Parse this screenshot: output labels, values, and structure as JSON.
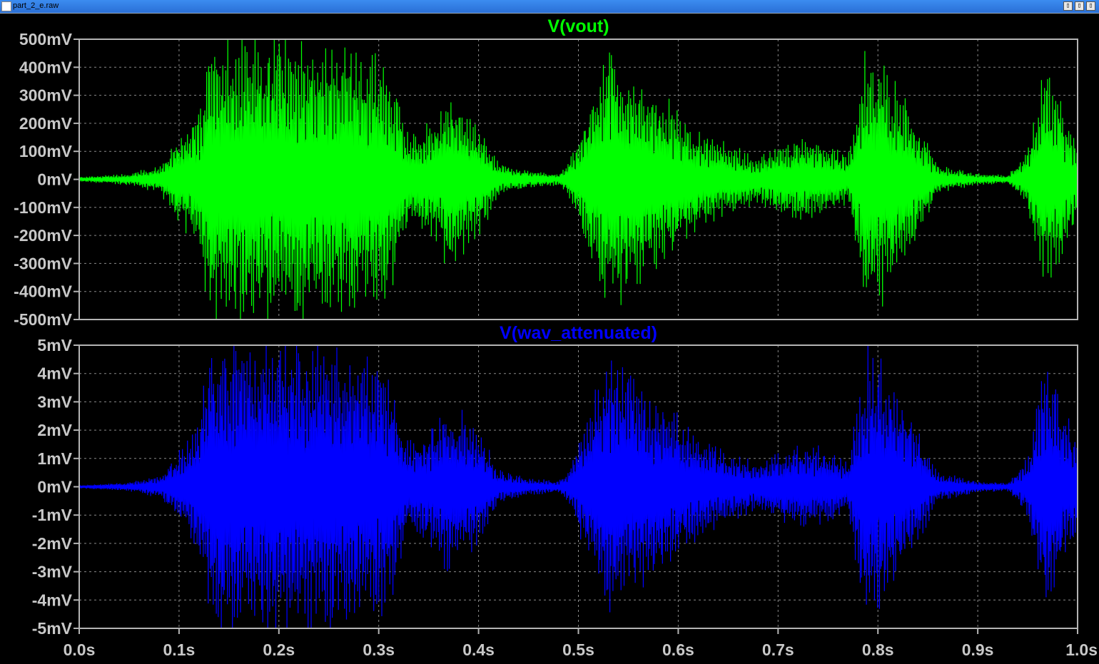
{
  "window": {
    "title": "part_2_e.raw",
    "controls": [
      "▯",
      "▯",
      "▯"
    ]
  },
  "chart_data": [
    {
      "type": "line",
      "title": "V(vout)",
      "color": "#00ff00",
      "ylim": [
        -500,
        500
      ],
      "yunit": "mV",
      "yticks": [
        500,
        400,
        300,
        200,
        100,
        0,
        -100,
        -200,
        -300,
        -400,
        -500
      ],
      "ytick_labels": [
        "500mV",
        "400mV",
        "300mV",
        "200mV",
        "100mV",
        "0mV",
        "-100mV",
        "-200mV",
        "-300mV",
        "-400mV",
        "-500mV"
      ],
      "xlim": [
        0.0,
        1.0
      ],
      "grid": true,
      "envelope": {
        "t": [
          0.0,
          0.05,
          0.08,
          0.1,
          0.12,
          0.13,
          0.16,
          0.2,
          0.25,
          0.28,
          0.31,
          0.33,
          0.35,
          0.37,
          0.4,
          0.42,
          0.45,
          0.48,
          0.49,
          0.51,
          0.53,
          0.55,
          0.58,
          0.62,
          0.65,
          0.68,
          0.7,
          0.72,
          0.75,
          0.77,
          0.78,
          0.79,
          0.81,
          0.84,
          0.86,
          0.9,
          0.93,
          0.95,
          0.96,
          0.97,
          1.0
        ],
        "amp": [
          8,
          20,
          50,
          150,
          250,
          480,
          500,
          500,
          500,
          450,
          420,
          150,
          200,
          300,
          200,
          60,
          30,
          20,
          60,
          250,
          480,
          400,
          300,
          180,
          120,
          80,
          120,
          150,
          130,
          80,
          300,
          480,
          400,
          200,
          50,
          20,
          15,
          100,
          300,
          380,
          150
        ]
      }
    },
    {
      "type": "line",
      "title": "V(wav_attenuated)",
      "color": "#0000ff",
      "ylim": [
        -5,
        5
      ],
      "yunit": "mV",
      "yticks": [
        5,
        4,
        3,
        2,
        1,
        0,
        -1,
        -2,
        -3,
        -4,
        -5
      ],
      "ytick_labels": [
        "5mV",
        "4mV",
        "3mV",
        "2mV",
        "1mV",
        "0mV",
        "-1mV",
        "-2mV",
        "-3mV",
        "-4mV",
        "-5mV"
      ],
      "xlim": [
        0.0,
        1.0
      ],
      "xticks": [
        0.0,
        0.1,
        0.2,
        0.3,
        0.4,
        0.5,
        0.6,
        0.7,
        0.8,
        0.9,
        1.0
      ],
      "xtick_labels": [
        "0.0s",
        "0.1s",
        "0.2s",
        "0.3s",
        "0.4s",
        "0.5s",
        "0.6s",
        "0.7s",
        "0.8s",
        "0.9s",
        "1.0s"
      ],
      "grid": true,
      "envelope": {
        "t": [
          0.0,
          0.05,
          0.08,
          0.1,
          0.12,
          0.13,
          0.16,
          0.2,
          0.25,
          0.28,
          0.31,
          0.33,
          0.35,
          0.37,
          0.4,
          0.42,
          0.45,
          0.48,
          0.49,
          0.51,
          0.53,
          0.55,
          0.58,
          0.62,
          0.65,
          0.68,
          0.7,
          0.72,
          0.75,
          0.77,
          0.78,
          0.79,
          0.81,
          0.84,
          0.86,
          0.9,
          0.93,
          0.95,
          0.96,
          0.97,
          1.0
        ],
        "amp": [
          0.05,
          0.15,
          0.4,
          1.2,
          2.5,
          4.8,
          5.0,
          5.0,
          5.0,
          4.6,
          4.2,
          1.5,
          2.0,
          3.0,
          2.0,
          0.6,
          0.3,
          0.2,
          0.6,
          2.5,
          4.8,
          4.0,
          3.0,
          1.8,
          1.2,
          0.8,
          1.2,
          1.5,
          1.3,
          0.8,
          3.0,
          5.0,
          4.0,
          2.0,
          0.5,
          0.2,
          0.15,
          1.0,
          3.0,
          4.3,
          1.5
        ]
      }
    }
  ]
}
